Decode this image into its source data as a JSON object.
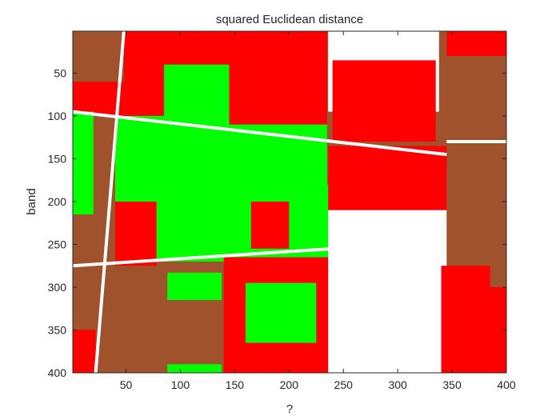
{
  "chart_data": {
    "type": "heatmap",
    "title": "squared Euclidean distance",
    "xlabel": "?",
    "ylabel": "band",
    "xlim": [
      1,
      400
    ],
    "ylim": [
      1,
      400
    ],
    "y_reversed": true,
    "xticks": [
      50,
      100,
      150,
      200,
      250,
      300,
      350,
      400
    ],
    "yticks": [
      50,
      100,
      150,
      200,
      250,
      300,
      350,
      400
    ],
    "xtick_labels": [
      "50",
      "100",
      "150",
      "200",
      "250",
      "300",
      "350",
      "400"
    ],
    "ytick_labels": [
      "50",
      "100",
      "150",
      "200",
      "250",
      "300",
      "350",
      "400"
    ],
    "class_colors": {
      "soil": "#a0522d",
      "vegetation": "#00ff00",
      "red_class": "#ff0000",
      "bright": "#ffffff"
    },
    "regions": [
      {
        "class": "soil",
        "x0": 1,
        "x1": 400,
        "y0": 1,
        "y1": 400
      },
      {
        "class": "red_class",
        "x0": 48,
        "x1": 148,
        "y0": 1,
        "y1": 75
      },
      {
        "class": "red_class",
        "x0": 1,
        "x1": 150,
        "y0": 60,
        "y1": 100
      },
      {
        "class": "vegetation",
        "x0": 1,
        "x1": 20,
        "y0": 95,
        "y1": 215
      },
      {
        "class": "vegetation",
        "x0": 85,
        "x1": 145,
        "y0": 40,
        "y1": 105
      },
      {
        "class": "vegetation",
        "x0": 40,
        "x1": 145,
        "y0": 100,
        "y1": 270
      },
      {
        "class": "red_class",
        "x0": 40,
        "x1": 78,
        "y0": 200,
        "y1": 275
      },
      {
        "class": "red_class",
        "x0": 1,
        "x1": 22,
        "y0": 350,
        "y1": 400
      },
      {
        "class": "red_class",
        "x0": 145,
        "x1": 235,
        "y0": 1,
        "y1": 128
      },
      {
        "class": "vegetation",
        "x0": 145,
        "x1": 235,
        "y0": 110,
        "y1": 185
      },
      {
        "class": "vegetation",
        "x0": 145,
        "x1": 237,
        "y0": 180,
        "y1": 270
      },
      {
        "class": "red_class",
        "x0": 165,
        "x1": 200,
        "y0": 200,
        "y1": 255
      },
      {
        "class": "red_class",
        "x0": 140,
        "x1": 238,
        "y0": 265,
        "y1": 400
      },
      {
        "class": "vegetation",
        "x0": 88,
        "x1": 138,
        "y0": 283,
        "y1": 315
      },
      {
        "class": "vegetation",
        "x0": 160,
        "x1": 225,
        "y0": 295,
        "y1": 365
      },
      {
        "class": "vegetation",
        "x0": 88,
        "x1": 138,
        "y0": 390,
        "y1": 400
      },
      {
        "class": "bright",
        "x0": 236,
        "x1": 338,
        "y0": 1,
        "y1": 95
      },
      {
        "class": "red_class",
        "x0": 240,
        "x1": 335,
        "y0": 35,
        "y1": 130
      },
      {
        "class": "red_class",
        "x0": 236,
        "x1": 345,
        "y0": 135,
        "y1": 215
      },
      {
        "class": "bright",
        "x0": 236,
        "x1": 345,
        "y0": 210,
        "y1": 400
      },
      {
        "class": "red_class",
        "x0": 345,
        "x1": 400,
        "y0": 1,
        "y1": 30
      },
      {
        "class": "red_class",
        "x0": 340,
        "x1": 385,
        "y0": 275,
        "y1": 400
      },
      {
        "class": "red_class",
        "x0": 385,
        "x1": 400,
        "y0": 300,
        "y1": 400
      }
    ],
    "linear_features": [
      {
        "class": "bright",
        "from": [
          48,
          1
        ],
        "to": [
          22,
          400
        ]
      },
      {
        "class": "bright",
        "from": [
          1,
          95
        ],
        "to": [
          345,
          145
        ]
      },
      {
        "class": "bright",
        "from": [
          1,
          275
        ],
        "to": [
          240,
          255
        ]
      },
      {
        "class": "bright",
        "from": [
          345,
          130
        ],
        "to": [
          400,
          130
        ]
      }
    ]
  }
}
